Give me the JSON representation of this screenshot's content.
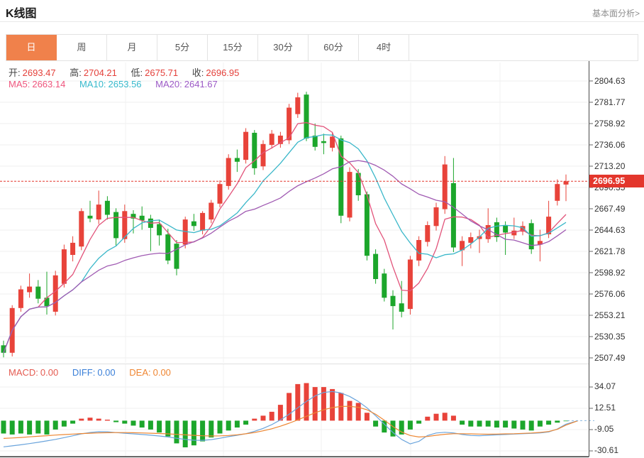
{
  "header": {
    "title": "K线图",
    "link": "基本面分析>"
  },
  "tabs": {
    "items": [
      "日",
      "周",
      "月",
      "5分",
      "15分",
      "30分",
      "60分",
      "4时"
    ],
    "selected_index": 0,
    "selected_label": "日"
  },
  "readout": {
    "open_label": "开:",
    "open": "2693.47",
    "high_label": "高:",
    "high": "2704.21",
    "low_label": "低:",
    "low": "2675.71",
    "close_label": "收:",
    "close": "2696.95",
    "ma5_label": "MA5:",
    "ma5": "2663.14",
    "ma10_label": "MA10:",
    "ma10": "2653.56",
    "ma20_label": "MA20:",
    "ma20": "2641.67"
  },
  "macd_readout": {
    "macd_label": "MACD:",
    "macd": "0.00",
    "diff_label": "DIFF:",
    "diff": "0.00",
    "dea_label": "DEA:",
    "dea": "0.00"
  },
  "price_axis": {
    "ticks": [
      "2804.63",
      "2781.77",
      "2758.92",
      "2736.06",
      "2713.20",
      "2690.35",
      "2667.49",
      "2644.63",
      "2621.78",
      "2598.92",
      "2576.06",
      "2553.21",
      "2530.35",
      "2507.49"
    ],
    "current_price": "2696.95"
  },
  "macd_axis": {
    "ticks": [
      "34.07",
      "12.51",
      "-9.05",
      "-30.61"
    ]
  },
  "colors": {
    "up": "#e8433a",
    "down": "#1ca62b",
    "value_red": "#e4403a",
    "ma5_line": "#e2537a",
    "ma10_line": "#3ab7c9",
    "ma20_line": "#a05ab2",
    "ma5_text": "#ef557d",
    "ma10_text": "#36b9cc",
    "ma20_text": "#9c59c6",
    "macd_text": "#e45a50",
    "diff_text": "#3a7fd8",
    "dea_text": "#ef8632",
    "diff_line": "#6aa4dc",
    "dea_line": "#ed8733",
    "badge": "#e3362c",
    "price_line": "#e2362c",
    "tab_active": "#f0814b",
    "grid": "#efefef",
    "axis": "#4a4a4a"
  },
  "chart_data": {
    "type": "candlestick",
    "panels": [
      "price",
      "macd"
    ],
    "title": "K线图 (daily)",
    "price_axis_range": [
      2507.49,
      2804.63
    ],
    "price_axis_ticks": [
      2804.63,
      2781.77,
      2758.92,
      2736.06,
      2713.2,
      2690.35,
      2667.49,
      2644.63,
      2621.78,
      2598.92,
      2576.06,
      2553.21,
      2530.35,
      2507.49
    ],
    "macd_axis_ticks": [
      34.07,
      12.51,
      -9.05,
      -30.61
    ],
    "current_price": 2696.95,
    "last_candle": {
      "open": 2693.47,
      "high": 2704.21,
      "low": 2675.71,
      "close": 2696.95
    },
    "ma_values": {
      "ma5": 2663.14,
      "ma10": 2653.56,
      "ma20": 2641.67
    },
    "macd_values": {
      "macd": 0.0,
      "diff": 0.0,
      "dea": 0.0
    },
    "ma_periods": [
      5,
      10,
      20
    ],
    "candles_ohlc": [
      [
        2521,
        2526,
        2508,
        2513
      ],
      [
        2513,
        2564,
        2509,
        2561
      ],
      [
        2561,
        2585,
        2557,
        2581
      ],
      [
        2578,
        2598,
        2572,
        2584
      ],
      [
        2584,
        2591,
        2566,
        2571
      ],
      [
        2572,
        2600,
        2554,
        2563
      ],
      [
        2557,
        2601,
        2553,
        2596
      ],
      [
        2587,
        2629,
        2583,
        2624
      ],
      [
        2618,
        2638,
        2611,
        2631
      ],
      [
        2627,
        2668,
        2623,
        2665
      ],
      [
        2660,
        2676,
        2653,
        2657
      ],
      [
        2656,
        2687,
        2651,
        2672
      ],
      [
        2676,
        2681,
        2656,
        2661
      ],
      [
        2664,
        2668,
        2628,
        2636
      ],
      [
        2635,
        2672,
        2631,
        2665
      ],
      [
        2662,
        2666,
        2641,
        2657
      ],
      [
        2660,
        2670,
        2645,
        2655
      ],
      [
        2657,
        2661,
        2622,
        2647
      ],
      [
        2651,
        2656,
        2628,
        2639
      ],
      [
        2640,
        2646,
        2608,
        2612
      ],
      [
        2630,
        2634,
        2596,
        2603
      ],
      [
        2629,
        2659,
        2625,
        2656
      ],
      [
        2654,
        2662,
        2644,
        2649
      ],
      [
        2644,
        2665,
        2640,
        2663
      ],
      [
        2656,
        2677,
        2652,
        2674
      ],
      [
        2673,
        2698,
        2669,
        2694
      ],
      [
        2692,
        2726,
        2688,
        2722
      ],
      [
        2722,
        2731,
        2707,
        2718
      ],
      [
        2720,
        2754,
        2716,
        2750
      ],
      [
        2749,
        2752,
        2704,
        2711
      ],
      [
        2713,
        2741,
        2709,
        2737
      ],
      [
        2736,
        2752,
        2732,
        2748
      ],
      [
        2737,
        2750,
        2733,
        2746
      ],
      [
        2741,
        2780,
        2737,
        2776
      ],
      [
        2769,
        2792,
        2765,
        2787
      ],
      [
        2790,
        2793,
        2740,
        2743
      ],
      [
        2746,
        2759,
        2730,
        2734
      ],
      [
        2740,
        2748,
        2726,
        2738
      ],
      [
        2733,
        2750,
        2729,
        2745
      ],
      [
        2743,
        2746,
        2652,
        2660
      ],
      [
        2658,
        2712,
        2654,
        2707
      ],
      [
        2706,
        2710,
        2676,
        2682
      ],
      [
        2683,
        2686,
        2612,
        2617
      ],
      [
        2619,
        2624,
        2587,
        2592
      ],
      [
        2598,
        2603,
        2568,
        2572
      ],
      [
        2574,
        2580,
        2538,
        2563
      ],
      [
        2566,
        2590,
        2551,
        2557
      ],
      [
        2560,
        2617,
        2554,
        2613
      ],
      [
        2612,
        2638,
        2606,
        2634
      ],
      [
        2632,
        2654,
        2627,
        2650
      ],
      [
        2649,
        2674,
        2644,
        2669
      ],
      [
        2667,
        2724,
        2662,
        2715
      ],
      [
        2695,
        2722,
        2621,
        2626
      ],
      [
        2623,
        2638,
        2606,
        2633
      ],
      [
        2631,
        2642,
        2625,
        2637
      ],
      [
        2635,
        2645,
        2620,
        2638
      ],
      [
        2635,
        2668,
        2631,
        2650
      ],
      [
        2653,
        2658,
        2632,
        2637
      ],
      [
        2650,
        2654,
        2618,
        2642
      ],
      [
        2639,
        2658,
        2635,
        2644
      ],
      [
        2643,
        2654,
        2639,
        2649
      ],
      [
        2652,
        2656,
        2619,
        2624
      ],
      [
        2629,
        2645,
        2611,
        2633
      ],
      [
        2640,
        2676,
        2636,
        2659
      ],
      [
        2676,
        2699,
        2671,
        2694
      ],
      [
        2693.47,
        2704.21,
        2675.71,
        2696.95
      ]
    ],
    "macd_histogram": [
      -13,
      -14,
      -13,
      -14,
      -13,
      -14,
      -9,
      -6,
      -3,
      2,
      3,
      2,
      1,
      -1.5,
      -3,
      -5,
      -7,
      -9,
      -12,
      -16,
      -23,
      -27,
      -25,
      -21,
      -17,
      -13,
      -10,
      -7,
      -4,
      2,
      5,
      9,
      16,
      28,
      37,
      38,
      34,
      34,
      32,
      28,
      20,
      18,
      8,
      -6,
      -12,
      -16,
      -14,
      -9,
      -3,
      4,
      7,
      8,
      5,
      -4,
      -6,
      -6,
      -6,
      -7,
      -7,
      -8,
      -9,
      -10,
      -6,
      -4,
      -2,
      -0.5
    ],
    "diff_line": [
      -26.5,
      -25.5,
      -24.4,
      -23.2,
      -21.9,
      -20.5,
      -19.0,
      -17.2,
      -15.3,
      -13.4,
      -12.0,
      -11.2,
      -11.3,
      -12.1,
      -12.8,
      -13.4,
      -14.0,
      -14.7,
      -15.5,
      -16.5,
      -17.8,
      -19.0,
      -19.8,
      -19.9,
      -19.2,
      -17.8,
      -16.2,
      -14.8,
      -13.2,
      -10.8,
      -7.8,
      -4.0,
      0.8,
      6.5,
      13.0,
      19.5,
      25.0,
      28.5,
      29.5,
      28.0,
      24.5,
      19.5,
      13.0,
      5.0,
      -3.5,
      -12.0,
      -19.0,
      -23.5,
      -21.0,
      -15.0,
      -12.5,
      -11.8,
      -12.4,
      -14.0,
      -15.0,
      -15.2,
      -14.8,
      -14.4,
      -14.0,
      -13.6,
      -13.2,
      -12.9,
      -12.4,
      -11.4,
      -8.5,
      -3.5
    ],
    "dea_line": [
      -18.0,
      -17.5,
      -17.0,
      -16.4,
      -15.8,
      -15.2,
      -14.6,
      -14.1,
      -13.6,
      -13.1,
      -12.7,
      -12.4,
      -12.2,
      -12.1,
      -12.1,
      -12.2,
      -12.4,
      -12.7,
      -13.0,
      -13.4,
      -13.9,
      -14.4,
      -14.9,
      -15.3,
      -15.5,
      -15.4,
      -15.0,
      -14.3,
      -13.3,
      -12.0,
      -10.3,
      -8.2,
      -5.6,
      -2.6,
      0.8,
      4.4,
      8.0,
      11.0,
      13.2,
      14.4,
      14.5,
      13.5,
      11.0,
      6.5,
      0.5,
      -6.0,
      -11.5,
      -15.0,
      -16.5,
      -16.0,
      -14.8,
      -13.8,
      -13.2,
      -13.2,
      -13.4,
      -13.6,
      -13.7,
      -13.6,
      -13.4,
      -13.2,
      -12.9,
      -12.5,
      -11.9,
      -11.0,
      -8.8,
      -4.5
    ]
  }
}
